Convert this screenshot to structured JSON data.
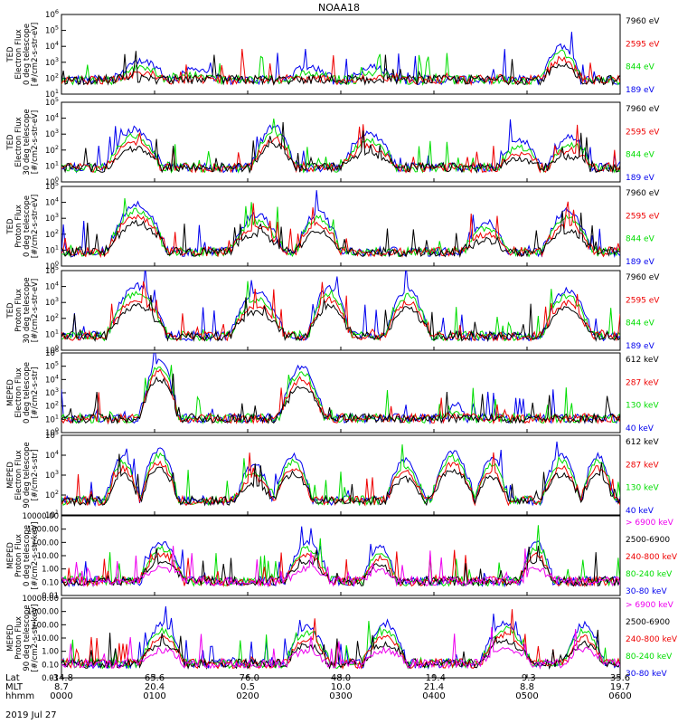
{
  "title": "NOAA18",
  "date": "2019 Jul 27",
  "chart_data": [
    {
      "type": "line",
      "id": "ted-e-0",
      "ylabel": [
        "TED",
        "Electron Flux",
        "0 deg telescope",
        "[#/cm2-s-str-eV]"
      ],
      "yscale": "log",
      "yticks": [
        "10^1",
        "10^2",
        "10^3",
        "10^4",
        "10^5",
        "10^6"
      ],
      "yrange": [
        1,
        6
      ],
      "series": [
        {
          "name": "7960 eV",
          "color": "#000000"
        },
        {
          "name": "2595 eV",
          "color": "#ee0000"
        },
        {
          "name": "844 eV",
          "color": "#00dd00"
        },
        {
          "name": "189 eV",
          "color": "#0000ee"
        }
      ],
      "bumps": [
        [
          0.1,
          0.19,
          3.1
        ],
        [
          0.2,
          0.28,
          2.6
        ],
        [
          0.4,
          0.49,
          2.7
        ],
        [
          0.52,
          0.6,
          2.7
        ],
        [
          0.86,
          0.93,
          4.0
        ]
      ]
    },
    {
      "type": "line",
      "id": "ted-e-30",
      "ylabel": [
        "TED",
        "Electron Flux",
        "30 deg telescope",
        "[#/cm2-s-str-eV]"
      ],
      "yscale": "log",
      "yticks": [
        "10^0",
        "10^1",
        "10^2",
        "10^3",
        "10^4",
        "10^5"
      ],
      "yrange": [
        0,
        5
      ],
      "series": [
        {
          "name": "7960 eV",
          "color": "#000000"
        },
        {
          "name": "2595 eV",
          "color": "#ee0000"
        },
        {
          "name": "844 eV",
          "color": "#00dd00"
        },
        {
          "name": "189 eV",
          "color": "#0000ee"
        }
      ],
      "bumps": [
        [
          0.08,
          0.18,
          3.3
        ],
        [
          0.34,
          0.42,
          3.5
        ],
        [
          0.5,
          0.6,
          3.0
        ],
        [
          0.78,
          0.86,
          2.6
        ],
        [
          0.87,
          0.95,
          2.8
        ]
      ]
    },
    {
      "type": "line",
      "id": "ted-p-0",
      "ylabel": [
        "TED",
        "Proton Flux",
        "0 deg telescope",
        "[#/cm2-s-str-eV]"
      ],
      "yscale": "log",
      "yticks": [
        "10^0",
        "10^1",
        "10^2",
        "10^3",
        "10^4",
        "10^5"
      ],
      "yrange": [
        0,
        5
      ],
      "series": [
        {
          "name": "7960 eV",
          "color": "#000000"
        },
        {
          "name": "2595 eV",
          "color": "#ee0000"
        },
        {
          "name": "844 eV",
          "color": "#00dd00"
        },
        {
          "name": "189 eV",
          "color": "#0000ee"
        }
      ],
      "bumps": [
        [
          0.08,
          0.19,
          3.9
        ],
        [
          0.3,
          0.4,
          3.2
        ],
        [
          0.42,
          0.5,
          3.4
        ],
        [
          0.72,
          0.8,
          2.8
        ],
        [
          0.86,
          0.95,
          3.4
        ]
      ]
    },
    {
      "type": "line",
      "id": "ted-p-30",
      "ylabel": [
        "TED",
        "Proton Flux",
        "30 deg telescope",
        "[#/cm2-s-str-eV]"
      ],
      "yscale": "log",
      "yticks": [
        "10^0",
        "10^1",
        "10^2",
        "10^3",
        "10^4",
        "10^5"
      ],
      "yrange": [
        0,
        5
      ],
      "series": [
        {
          "name": "7960 eV",
          "color": "#000000"
        },
        {
          "name": "2595 eV",
          "color": "#ee0000"
        },
        {
          "name": "844 eV",
          "color": "#00dd00"
        },
        {
          "name": "189 eV",
          "color": "#0000ee"
        }
      ],
      "bumps": [
        [
          0.08,
          0.19,
          4.0
        ],
        [
          0.3,
          0.4,
          3.6
        ],
        [
          0.44,
          0.52,
          4.0
        ],
        [
          0.58,
          0.66,
          3.8
        ],
        [
          0.86,
          0.95,
          3.8
        ]
      ]
    },
    {
      "type": "line",
      "id": "meped-e-0",
      "ylabel": [
        "MEPED",
        "Electron Flux",
        "0 deg telescope",
        "[#/cm2-s-str]"
      ],
      "yscale": "log",
      "yticks": [
        "10^0",
        "10^1",
        "10^2",
        "10^3",
        "10^4",
        "10^5",
        "10^6"
      ],
      "yrange": [
        0,
        6
      ],
      "series": [
        {
          "name": "612 keV",
          "color": "#000000"
        },
        {
          "name": "287 keV",
          "color": "#ee0000"
        },
        {
          "name": "130 keV",
          "color": "#00dd00"
        },
        {
          "name": "40 keV",
          "color": "#0000ee"
        }
      ],
      "bumps": [
        [
          0.14,
          0.21,
          5.5
        ],
        [
          0.39,
          0.47,
          5.0
        ],
        [
          0.69,
          0.72,
          2.2
        ]
      ]
    },
    {
      "type": "line",
      "id": "meped-e-90",
      "ylabel": [
        "MEPED",
        "Electron Flux",
        "90 deg telescope",
        "[#/cm2-s-str]"
      ],
      "yscale": "log",
      "yticks": [
        "10^1",
        "10^2",
        "10^3",
        "10^4",
        "10^5"
      ],
      "yrange": [
        1,
        5
      ],
      "series": [
        {
          "name": "612 keV",
          "color": "#000000"
        },
        {
          "name": "287 keV",
          "color": "#ee0000"
        },
        {
          "name": "130 keV",
          "color": "#00dd00"
        },
        {
          "name": "40 keV",
          "color": "#0000ee"
        }
      ],
      "bumps": [
        [
          0.08,
          0.14,
          4.0
        ],
        [
          0.14,
          0.21,
          4.3
        ],
        [
          0.31,
          0.38,
          3.5
        ],
        [
          0.38,
          0.45,
          4.0
        ],
        [
          0.58,
          0.65,
          3.8
        ],
        [
          0.66,
          0.74,
          4.2
        ],
        [
          0.74,
          0.8,
          3.9
        ],
        [
          0.86,
          0.93,
          4.0
        ],
        [
          0.93,
          0.99,
          4.0
        ]
      ]
    },
    {
      "type": "line",
      "id": "meped-p-0",
      "ylabel": [
        "MEPED",
        "Proton Flux",
        "0 deg telescope",
        "[#/cm2-s-str-keV]"
      ],
      "yscale": "log",
      "yticks": [
        "0.01",
        "0.10",
        "1.00",
        "10.00",
        "100.00",
        "1000.00",
        "10000.00"
      ],
      "yrange": [
        -2,
        4
      ],
      "series": [
        {
          "name": "> 6900 keV",
          "color": "#ee00ee"
        },
        {
          "name": "2500-6900",
          "color": "#000000"
        },
        {
          "name": "240-800 keV",
          "color": "#ee0000"
        },
        {
          "name": "80-240 keV",
          "color": "#00dd00"
        },
        {
          "name": "30-80 keV",
          "color": "#0000ee"
        }
      ],
      "bumps": [
        [
          0.14,
          0.22,
          2.0
        ],
        [
          0.4,
          0.48,
          2.0
        ],
        [
          0.54,
          0.6,
          1.8
        ],
        [
          0.82,
          0.88,
          2.0
        ]
      ]
    },
    {
      "type": "line",
      "id": "meped-p-90",
      "ylabel": [
        "MEPED",
        "Proton Flux",
        "90 deg telescope",
        "[#/cm2-s-str-keV]"
      ],
      "yscale": "log",
      "yticks": [
        "0.01",
        "0.10",
        "1.00",
        "10.00",
        "100.00",
        "1000.00",
        "10000.00"
      ],
      "yrange": [
        -2,
        4
      ],
      "series": [
        {
          "name": "> 6900 keV",
          "color": "#ee00ee"
        },
        {
          "name": "2500-6900",
          "color": "#000000"
        },
        {
          "name": "240-800 keV",
          "color": "#ee0000"
        },
        {
          "name": "80-240 keV",
          "color": "#00dd00"
        },
        {
          "name": "30-80 keV",
          "color": "#0000ee"
        }
      ],
      "bumps": [
        [
          0.14,
          0.22,
          2.0
        ],
        [
          0.4,
          0.48,
          1.9
        ],
        [
          0.54,
          0.62,
          2.0
        ],
        [
          0.75,
          0.84,
          2.2
        ],
        [
          0.9,
          0.97,
          2.0
        ]
      ]
    }
  ],
  "xaxis": {
    "row_labels": [
      "Lat",
      "MLT",
      "hhmm"
    ],
    "ticks": [
      {
        "lat": "-34.8",
        "mlt": "8.7",
        "hhmm": "0000"
      },
      {
        "lat": "65.6",
        "mlt": "20.4",
        "hhmm": "0100"
      },
      {
        "lat": "-76.0",
        "mlt": "0.5",
        "hhmm": "0200"
      },
      {
        "lat": "48.0",
        "mlt": "10.0",
        "hhmm": "0300"
      },
      {
        "lat": "-19.4",
        "mlt": "21.4",
        "hhmm": "0400"
      },
      {
        "lat": "-9.3",
        "mlt": "8.8",
        "hhmm": "0500"
      },
      {
        "lat": "35.6",
        "mlt": "19.7",
        "hhmm": "0600"
      }
    ]
  }
}
